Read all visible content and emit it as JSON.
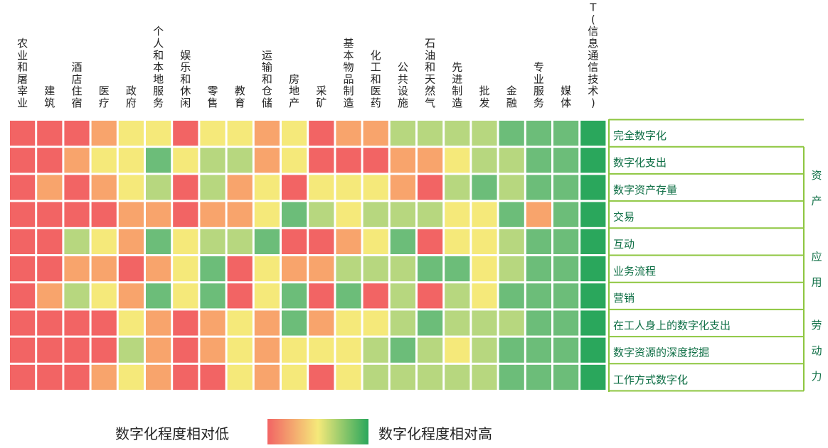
{
  "chart_data": {
    "type": "heatmap",
    "columns": [
      "农业和屠宰业",
      "建筑",
      "酒店住宿",
      "医疗",
      "政府",
      "个人和本地服务",
      "娱乐和休闲",
      "零售",
      "教育",
      "运输和仓储",
      "房地产",
      "采矿",
      "基本物品制造",
      "化工和医药",
      "公共设施",
      "石油和天然气",
      "先进制造",
      "批发",
      "金融",
      "专业服务",
      "媒体",
      "ICT(信息通信技术)"
    ],
    "rows": [
      "完全数字化",
      "数字化支出",
      "数字资产存量",
      "交易",
      "互动",
      "业务流程",
      "营销",
      "在工人身上的数字化支出",
      "数字资源的深度挖掘",
      "工作方式数字化"
    ],
    "groups": [
      {
        "label": "资产",
        "rows": [
          1,
          3
        ]
      },
      {
        "label": "应用",
        "rows": [
          4,
          6
        ]
      },
      {
        "label": "劳动力",
        "rows": [
          7,
          9
        ]
      }
    ],
    "scale": {
      "min": 1,
      "max": 6
    },
    "values": [
      [
        1,
        1,
        1,
        2,
        3,
        3,
        1,
        3,
        3,
        2,
        3,
        1,
        2,
        2,
        4,
        4,
        4,
        4,
        5,
        5,
        5,
        6
      ],
      [
        1,
        1,
        2,
        3,
        3,
        5,
        3,
        4,
        4,
        2,
        3,
        1,
        1,
        1,
        2,
        2,
        3,
        4,
        4,
        5,
        5,
        6
      ],
      [
        1,
        2,
        1,
        2,
        3,
        4,
        1,
        4,
        2,
        3,
        1,
        3,
        3,
        3,
        2,
        1,
        4,
        5,
        4,
        5,
        5,
        6
      ],
      [
        1,
        1,
        1,
        1,
        2,
        2,
        1,
        2,
        2,
        3,
        5,
        4,
        3,
        4,
        4,
        4,
        3,
        3,
        5,
        2,
        5,
        6
      ],
      [
        1,
        1,
        4,
        3,
        2,
        5,
        3,
        4,
        4,
        5,
        1,
        1,
        2,
        3,
        5,
        1,
        3,
        3,
        4,
        5,
        5,
        6
      ],
      [
        1,
        1,
        2,
        2,
        1,
        2,
        3,
        5,
        1,
        3,
        2,
        2,
        4,
        4,
        4,
        5,
        5,
        3,
        4,
        5,
        5,
        6
      ],
      [
        1,
        2,
        4,
        3,
        2,
        5,
        3,
        5,
        1,
        3,
        5,
        1,
        5,
        1,
        4,
        1,
        4,
        3,
        5,
        5,
        5,
        6
      ],
      [
        1,
        1,
        1,
        1,
        3,
        2,
        1,
        2,
        3,
        2,
        5,
        2,
        3,
        3,
        4,
        5,
        4,
        4,
        4,
        5,
        5,
        6
      ],
      [
        1,
        1,
        1,
        1,
        4,
        2,
        1,
        2,
        3,
        2,
        3,
        3,
        3,
        4,
        5,
        4,
        3,
        4,
        5,
        5,
        5,
        6
      ],
      [
        1,
        1,
        1,
        2,
        3,
        2,
        1,
        1,
        3,
        2,
        3,
        1,
        3,
        4,
        4,
        4,
        4,
        4,
        5,
        5,
        5,
        6
      ]
    ],
    "palette": {
      "1": "#f26464",
      "2": "#f8a46c",
      "3": "#f5e97a",
      "4": "#b7d77f",
      "5": "#6cbd79",
      "6": "#2aa75c"
    },
    "legend": {
      "low": "数字化程度相对低",
      "high": "数字化程度相对高",
      "gradient": [
        "#f26464",
        "#f5e97a",
        "#2aa75c"
      ]
    }
  },
  "colors": {
    "row_label": "#0f6f46",
    "frame_line": "#8dc63f"
  }
}
